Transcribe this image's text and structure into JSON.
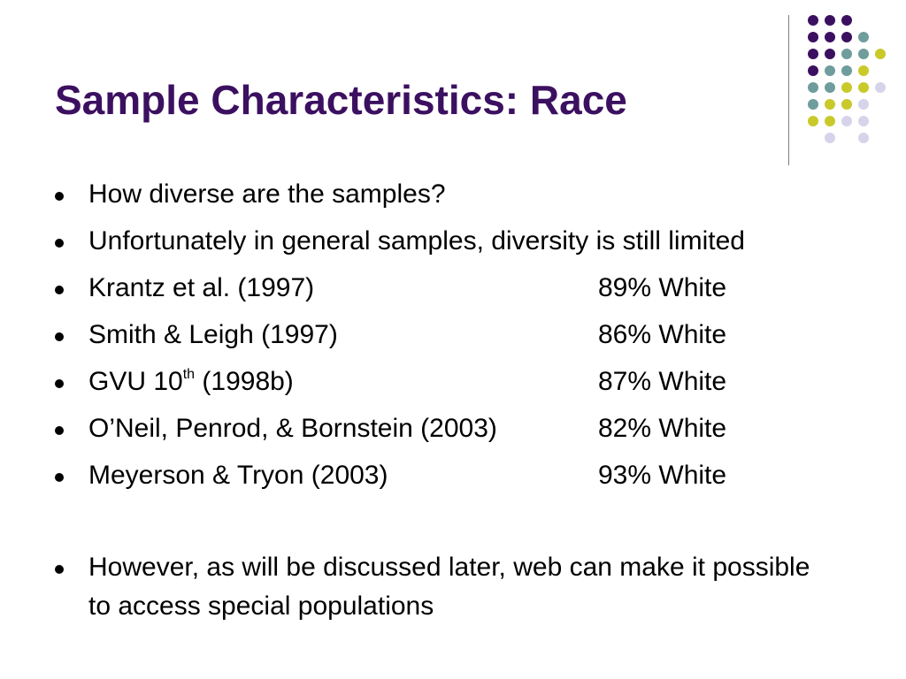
{
  "title": "Sample Characteristics: Race",
  "colors": {
    "title": "#3c1060",
    "purple": "#3c1060",
    "teal": "#6f9c9c",
    "yellow": "#c9c92a",
    "lavender": "#d6d4ea",
    "divider": "#7f7f7f"
  },
  "decoration": {
    "dot_grid": [
      [
        "purple",
        "purple",
        "purple",
        "",
        ""
      ],
      [
        "purple",
        "purple",
        "purple",
        "teal",
        ""
      ],
      [
        "purple",
        "purple",
        "teal",
        "teal",
        "yellow"
      ],
      [
        "purple",
        "teal",
        "teal",
        "yellow",
        ""
      ],
      [
        "teal",
        "teal",
        "yellow",
        "yellow",
        "lavender"
      ],
      [
        "teal",
        "yellow",
        "yellow",
        "lavender",
        ""
      ],
      [
        "yellow",
        "yellow",
        "lavender",
        "lavender",
        ""
      ],
      [
        "",
        "lavender",
        "",
        "lavender",
        ""
      ]
    ]
  },
  "bullets": {
    "q1": "How diverse are the samples?",
    "q2": "Unfortunately in general samples, diversity is still limited",
    "studies": [
      {
        "source": "Krantz et al. (1997)",
        "value": "89% White"
      },
      {
        "source": "Smith & Leigh (1997)",
        "value": "86% White"
      },
      {
        "source_pre": "GVU 10",
        "source_sup": "th",
        "source_post": " (1998b)",
        "value": "87% White"
      },
      {
        "source": "O’Neil, Penrod, & Bornstein (2003)",
        "value": "82% White"
      },
      {
        "source": "Meyerson & Tryon (2003)",
        "value": "93% White"
      }
    ],
    "closing": "However, as will be discussed later, web can make it possible to access special populations"
  }
}
